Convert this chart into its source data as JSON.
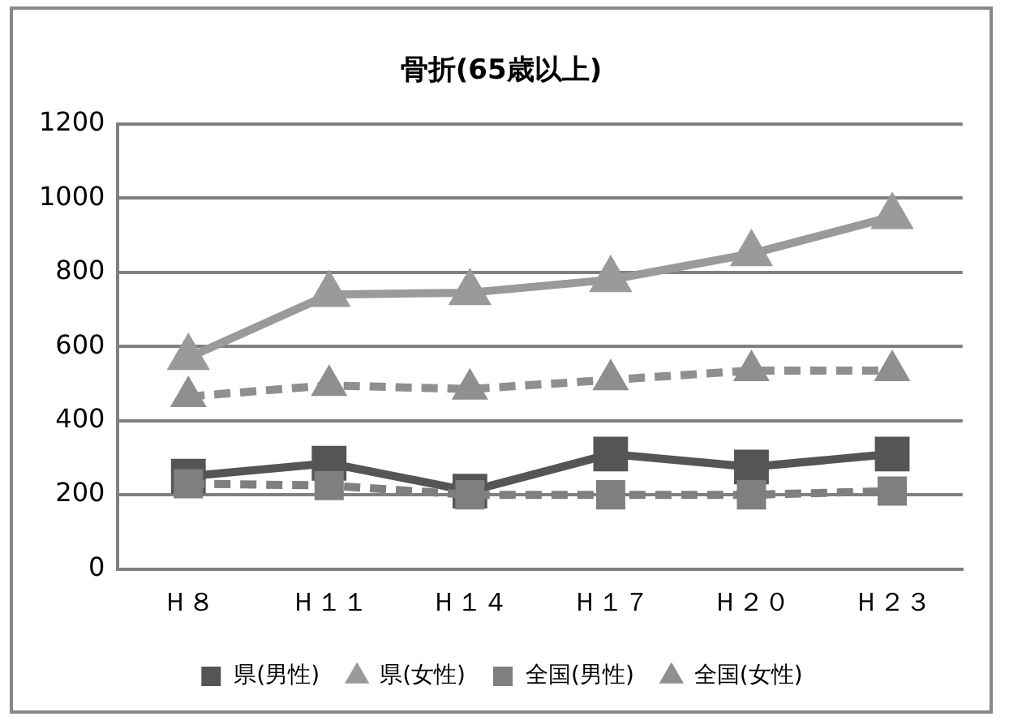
{
  "chart_data": {
    "type": "line",
    "title": "骨折(65歳以上)",
    "categories": [
      "Ｈ８",
      "Ｈ１１",
      "Ｈ１４",
      "Ｈ１７",
      "Ｈ２０",
      "Ｈ２３"
    ],
    "series": [
      {
        "name": "県(男性)",
        "color": "#555555",
        "marker": "square",
        "line_style": "solid",
        "values": [
          250,
          285,
          210,
          310,
          275,
          310
        ]
      },
      {
        "name": "県(女性)",
        "color": "#9a9a9a",
        "marker": "triangle",
        "line_style": "solid",
        "values": [
          570,
          740,
          745,
          780,
          850,
          950
        ]
      },
      {
        "name": "全国(男性)",
        "color": "#7f7f7f",
        "marker": "square",
        "line_style": "dashed",
        "values": [
          230,
          225,
          200,
          200,
          200,
          210
        ]
      },
      {
        "name": "全国(女性)",
        "color": "#8f8f8f",
        "marker": "triangle",
        "line_style": "dashed",
        "values": [
          465,
          495,
          485,
          510,
          535,
          535
        ]
      }
    ],
    "ylim": [
      0,
      1200
    ],
    "yticks": [
      0,
      200,
      400,
      600,
      800,
      1000,
      1200
    ],
    "grid": "y",
    "legend": "bottom"
  }
}
